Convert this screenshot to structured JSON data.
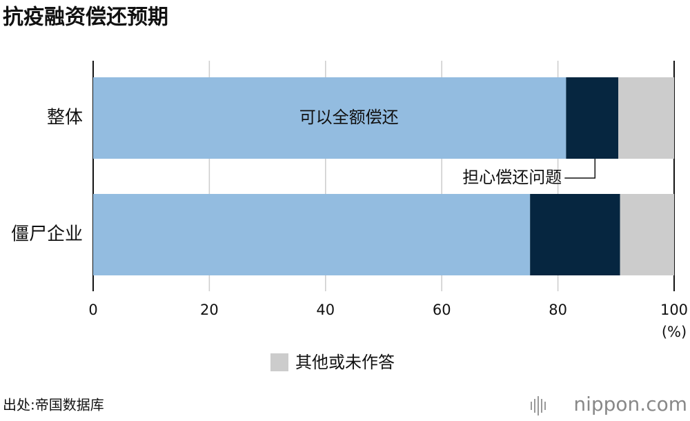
{
  "chart_data": {
    "type": "stacked-barh",
    "title": "抗疫融资偿还预期",
    "categories": [
      "整体",
      "僵尸企业"
    ],
    "series": [
      {
        "name": "可以全额偿还",
        "color": "#93bce0",
        "values": [
          81.4,
          75.2
        ]
      },
      {
        "name": "担心偿还问题",
        "color": "#062640",
        "values": [
          9.0,
          15.5
        ]
      },
      {
        "name": "其他或未作答",
        "color": "#cccccc",
        "values": [
          9.6,
          9.3
        ]
      }
    ],
    "xlim": [
      0,
      100
    ],
    "xticks": [
      0,
      20,
      40,
      60,
      80,
      100
    ],
    "x_unit": "(%)",
    "grid": true
  },
  "source": "出处:帝国数据库",
  "logo": "nippon.com"
}
